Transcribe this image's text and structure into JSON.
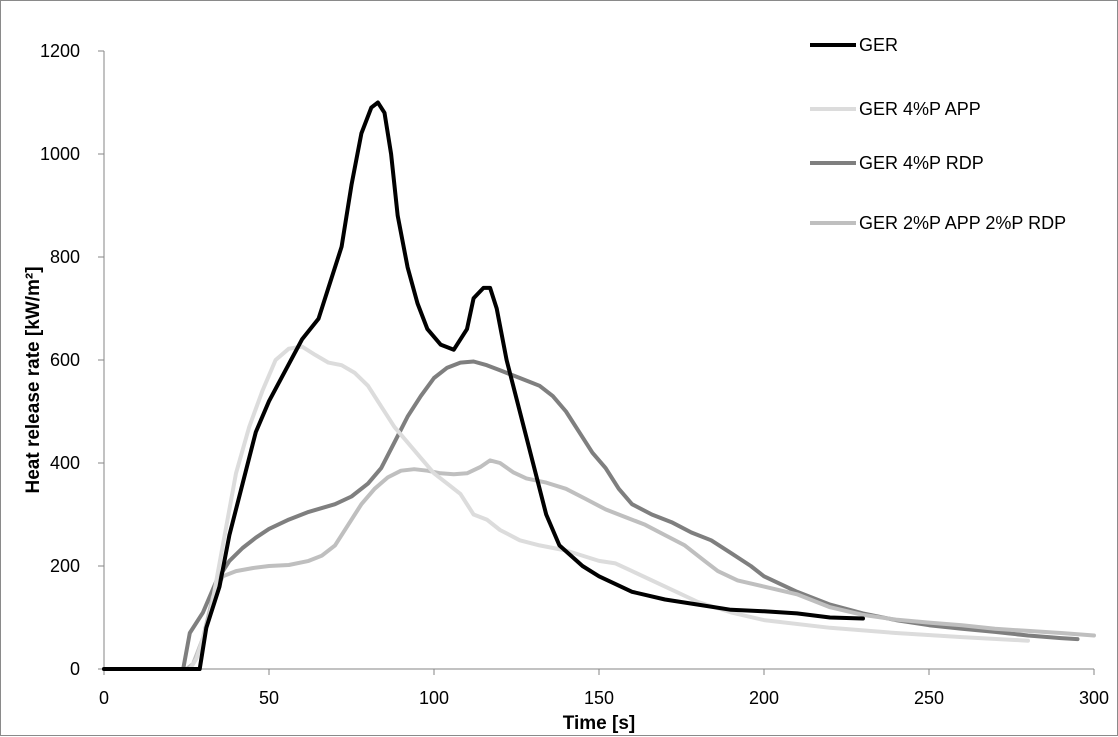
{
  "chart_data": {
    "type": "line",
    "title": "",
    "xlabel": "Time [s]",
    "ylabel": "Heat release rate [kW/m²]",
    "xlim": [
      0,
      300
    ],
    "ylim": [
      0,
      1200
    ],
    "xticks": [
      0,
      50,
      100,
      150,
      200,
      250,
      300
    ],
    "yticks": [
      0,
      200,
      400,
      600,
      800,
      1000,
      1200
    ],
    "grid": false,
    "legend_position": "top-right",
    "series": [
      {
        "name": "GER",
        "color": "#000000",
        "points": [
          [
            0,
            0
          ],
          [
            29,
            0
          ],
          [
            31,
            80
          ],
          [
            35,
            160
          ],
          [
            38,
            260
          ],
          [
            42,
            360
          ],
          [
            46,
            460
          ],
          [
            50,
            520
          ],
          [
            55,
            580
          ],
          [
            60,
            640
          ],
          [
            65,
            680
          ],
          [
            68,
            740
          ],
          [
            72,
            820
          ],
          [
            75,
            940
          ],
          [
            78,
            1040
          ],
          [
            81,
            1090
          ],
          [
            83,
            1100
          ],
          [
            85,
            1080
          ],
          [
            87,
            1000
          ],
          [
            89,
            880
          ],
          [
            92,
            780
          ],
          [
            95,
            710
          ],
          [
            98,
            660
          ],
          [
            102,
            630
          ],
          [
            106,
            620
          ],
          [
            110,
            660
          ],
          [
            112,
            720
          ],
          [
            115,
            740
          ],
          [
            117,
            740
          ],
          [
            119,
            700
          ],
          [
            122,
            600
          ],
          [
            126,
            500
          ],
          [
            130,
            400
          ],
          [
            134,
            300
          ],
          [
            138,
            240
          ],
          [
            145,
            200
          ],
          [
            150,
            180
          ],
          [
            160,
            150
          ],
          [
            170,
            135
          ],
          [
            180,
            125
          ],
          [
            190,
            115
          ],
          [
            200,
            112
          ],
          [
            210,
            108
          ],
          [
            220,
            100
          ],
          [
            230,
            98
          ]
        ]
      },
      {
        "name": "GER 4%P APP",
        "color": "#dcdcdc",
        "points": [
          [
            0,
            0
          ],
          [
            26,
            0
          ],
          [
            28,
            20
          ],
          [
            32,
            100
          ],
          [
            36,
            240
          ],
          [
            40,
            380
          ],
          [
            44,
            470
          ],
          [
            48,
            540
          ],
          [
            52,
            600
          ],
          [
            56,
            622
          ],
          [
            60,
            626
          ],
          [
            64,
            610
          ],
          [
            68,
            595
          ],
          [
            72,
            590
          ],
          [
            76,
            575
          ],
          [
            80,
            550
          ],
          [
            84,
            510
          ],
          [
            88,
            470
          ],
          [
            92,
            440
          ],
          [
            96,
            410
          ],
          [
            100,
            380
          ],
          [
            104,
            360
          ],
          [
            108,
            340
          ],
          [
            112,
            300
          ],
          [
            116,
            290
          ],
          [
            120,
            270
          ],
          [
            126,
            250
          ],
          [
            132,
            240
          ],
          [
            140,
            230
          ],
          [
            150,
            210
          ],
          [
            155,
            205
          ],
          [
            160,
            190
          ],
          [
            170,
            160
          ],
          [
            180,
            130
          ],
          [
            190,
            110
          ],
          [
            200,
            95
          ],
          [
            220,
            80
          ],
          [
            240,
            70
          ],
          [
            260,
            62
          ],
          [
            280,
            55
          ]
        ]
      },
      {
        "name": "GER 4%P RDP",
        "color": "#7f7f7f",
        "points": [
          [
            0,
            0
          ],
          [
            24,
            0
          ],
          [
            26,
            70
          ],
          [
            30,
            110
          ],
          [
            34,
            170
          ],
          [
            38,
            210
          ],
          [
            42,
            235
          ],
          [
            46,
            255
          ],
          [
            50,
            272
          ],
          [
            56,
            290
          ],
          [
            62,
            305
          ],
          [
            70,
            320
          ],
          [
            75,
            335
          ],
          [
            80,
            360
          ],
          [
            84,
            390
          ],
          [
            88,
            440
          ],
          [
            92,
            490
          ],
          [
            96,
            530
          ],
          [
            100,
            565
          ],
          [
            104,
            585
          ],
          [
            108,
            595
          ],
          [
            112,
            597
          ],
          [
            116,
            590
          ],
          [
            120,
            580
          ],
          [
            126,
            565
          ],
          [
            132,
            550
          ],
          [
            136,
            530
          ],
          [
            140,
            500
          ],
          [
            144,
            460
          ],
          [
            148,
            420
          ],
          [
            152,
            390
          ],
          [
            156,
            350
          ],
          [
            160,
            320
          ],
          [
            166,
            300
          ],
          [
            172,
            285
          ],
          [
            178,
            265
          ],
          [
            184,
            250
          ],
          [
            190,
            225
          ],
          [
            196,
            200
          ],
          [
            200,
            180
          ],
          [
            210,
            150
          ],
          [
            220,
            125
          ],
          [
            230,
            108
          ],
          [
            240,
            95
          ],
          [
            250,
            85
          ],
          [
            260,
            78
          ],
          [
            270,
            72
          ],
          [
            280,
            65
          ],
          [
            290,
            60
          ],
          [
            295,
            58
          ]
        ]
      },
      {
        "name": "GER 2%P APP 2%P RDP",
        "color": "#bfbfbf",
        "points": [
          [
            0,
            0
          ],
          [
            25,
            0
          ],
          [
            27,
            10
          ],
          [
            30,
            60
          ],
          [
            33,
            140
          ],
          [
            36,
            180
          ],
          [
            40,
            190
          ],
          [
            45,
            196
          ],
          [
            50,
            200
          ],
          [
            56,
            202
          ],
          [
            62,
            210
          ],
          [
            66,
            220
          ],
          [
            70,
            240
          ],
          [
            74,
            280
          ],
          [
            78,
            320
          ],
          [
            82,
            350
          ],
          [
            86,
            372
          ],
          [
            90,
            385
          ],
          [
            94,
            388
          ],
          [
            98,
            385
          ],
          [
            102,
            380
          ],
          [
            106,
            378
          ],
          [
            110,
            380
          ],
          [
            114,
            392
          ],
          [
            117,
            405
          ],
          [
            120,
            400
          ],
          [
            124,
            382
          ],
          [
            128,
            370
          ],
          [
            134,
            362
          ],
          [
            140,
            350
          ],
          [
            146,
            330
          ],
          [
            152,
            310
          ],
          [
            158,
            295
          ],
          [
            164,
            280
          ],
          [
            170,
            260
          ],
          [
            176,
            240
          ],
          [
            182,
            210
          ],
          [
            186,
            190
          ],
          [
            192,
            172
          ],
          [
            200,
            160
          ],
          [
            210,
            145
          ],
          [
            220,
            120
          ],
          [
            230,
            105
          ],
          [
            240,
            96
          ],
          [
            250,
            90
          ],
          [
            260,
            85
          ],
          [
            270,
            78
          ],
          [
            280,
            74
          ],
          [
            290,
            70
          ],
          [
            300,
            65
          ]
        ]
      }
    ]
  }
}
